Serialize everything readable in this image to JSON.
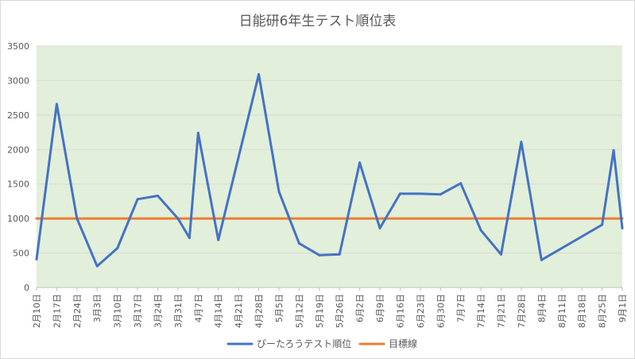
{
  "chart_data": {
    "type": "line",
    "title": "日能研6年生テスト順位表",
    "xlabel": "",
    "ylabel": "",
    "ylim": [
      0,
      3500
    ],
    "yticks": [
      0,
      500,
      1000,
      1500,
      2000,
      2500,
      3000,
      3500
    ],
    "grid": true,
    "legend_position": "bottom",
    "plot_background": "#e2efda",
    "categories": [
      "2月10日",
      "2月17日",
      "2月24日",
      "3月3日",
      "3月10日",
      "3月17日",
      "3月24日",
      "3月31日",
      "4月7日",
      "4月14日",
      "4月21日",
      "4月28日",
      "5月5日",
      "5月12日",
      "5月19日",
      "5月26日",
      "6月2日",
      "6月9日",
      "6月16日",
      "6月23日",
      "6月30日",
      "7月7日",
      "7月14日",
      "7月21日",
      "7月28日",
      "8月4日",
      "8月11日",
      "8月18日",
      "8月25日",
      "9月1日"
    ],
    "x": [
      0,
      7,
      14,
      21,
      28,
      35,
      42,
      49,
      56,
      63,
      70,
      77,
      84,
      91,
      98,
      105,
      112,
      119,
      126,
      133,
      140,
      147,
      154,
      161,
      168,
      175,
      182,
      189,
      196,
      203
    ],
    "series": [
      {
        "name": "ぴーたろうテスト順位",
        "color": "#4472c4",
        "points": [
          {
            "x": 0,
            "y": 410
          },
          {
            "x": 7,
            "y": 2660
          },
          {
            "x": 14,
            "y": 1000
          },
          {
            "x": 21,
            "y": 310
          },
          {
            "x": 28,
            "y": 570
          },
          {
            "x": 35,
            "y": 1280
          },
          {
            "x": 42,
            "y": 1330
          },
          {
            "x": 49,
            "y": 1000
          },
          {
            "x": 53,
            "y": 720
          },
          {
            "x": 56,
            "y": 2240
          },
          {
            "x": 63,
            "y": 690
          },
          {
            "x": 77,
            "y": 3090
          },
          {
            "x": 84,
            "y": 1390
          },
          {
            "x": 91,
            "y": 640
          },
          {
            "x": 98,
            "y": 470
          },
          {
            "x": 105,
            "y": 480
          },
          {
            "x": 112,
            "y": 1810
          },
          {
            "x": 119,
            "y": 860
          },
          {
            "x": 126,
            "y": 1360
          },
          {
            "x": 133,
            "y": 1360
          },
          {
            "x": 140,
            "y": 1350
          },
          {
            "x": 147,
            "y": 1510
          },
          {
            "x": 154,
            "y": 830
          },
          {
            "x": 161,
            "y": 480
          },
          {
            "x": 168,
            "y": 2110
          },
          {
            "x": 175,
            "y": 400
          },
          {
            "x": 196,
            "y": 910
          },
          {
            "x": 200,
            "y": 1990
          },
          {
            "x": 203,
            "y": 860
          }
        ]
      },
      {
        "name": "目標線",
        "color": "#ed7d31",
        "points": [
          {
            "x": 0,
            "y": 1000
          },
          {
            "x": 203,
            "y": 1000
          }
        ]
      }
    ]
  }
}
